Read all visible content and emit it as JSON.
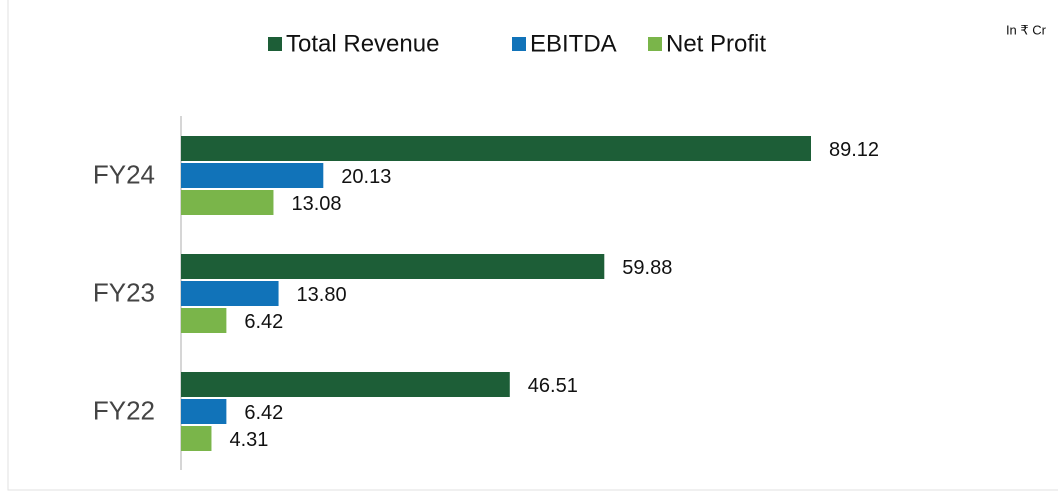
{
  "chart_data": {
    "type": "hbar",
    "annotation": "In ₹ Cr",
    "categories": [
      "FY24",
      "FY23",
      "FY22"
    ],
    "series": [
      {
        "name": "Total Revenue",
        "color": "#1d5e37",
        "values": [
          89.12,
          59.88,
          46.51
        ],
        "value_labels": [
          "89.12",
          "59.88",
          "46.51"
        ]
      },
      {
        "name": "EBITDA",
        "color": "#1173b9",
        "values": [
          20.13,
          13.8,
          6.42
        ],
        "value_labels": [
          "20.13",
          "13.80",
          "6.42"
        ]
      },
      {
        "name": "Net Profit",
        "color": "#7ab54a",
        "values": [
          13.08,
          6.42,
          4.31
        ],
        "value_labels": [
          "13.08",
          "6.42",
          "4.31"
        ]
      }
    ],
    "legend": "top"
  }
}
